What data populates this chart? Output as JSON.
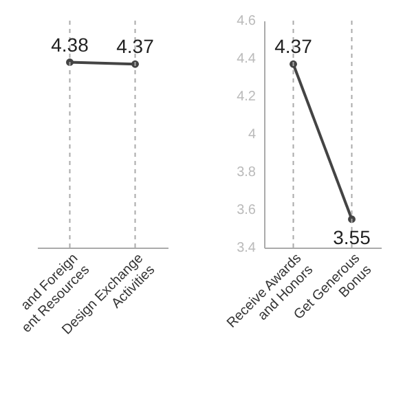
{
  "chart_data": [
    {
      "type": "line",
      "categories": [
        "and Foreign\nent Resources",
        "Design Exchange\nActivities"
      ],
      "values": [
        4.38,
        4.37
      ],
      "color": "#444444",
      "ylim": [
        3.4,
        4.6
      ],
      "tick_labels": "x",
      "data_labels": true,
      "marker": "circle",
      "grid": false,
      "ref_lines": [
        {
          "axis": "x",
          "value": "and Foreign\nent Resources",
          "color": "#aaaaaa",
          "line_style": "dashed"
        },
        {
          "axis": "x",
          "value": "Design Exchange\nActivities",
          "color": "#aaaaaa",
          "line_style": "dashed"
        }
      ]
    },
    {
      "type": "line",
      "categories": [
        "Receive Awards\nand Honors",
        "Get Generous\nBonus"
      ],
      "values": [
        4.37,
        3.55
      ],
      "color": "#444444",
      "ylim": [
        3.4,
        4.6
      ],
      "yticks": [
        3.4,
        3.6,
        3.8,
        {
          "value": 4,
          "label": "4"
        },
        4.2,
        4.4,
        4.6
      ],
      "data_labels": true,
      "marker": "circle",
      "grid": false,
      "ref_lines": [
        {
          "axis": "x",
          "value": "Receive Awards\nand Honors",
          "color": "#aaaaaa",
          "line_style": "dashed"
        },
        {
          "axis": "x",
          "value": "Get Generous\nBonus",
          "color": "#aaaaaa",
          "line_style": "dashed"
        }
      ]
    }
  ]
}
